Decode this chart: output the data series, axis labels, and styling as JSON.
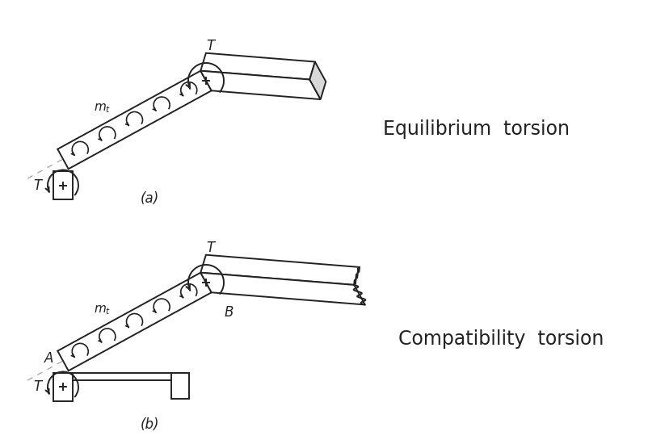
{
  "bg_color": "#ffffff",
  "line_color": "#222222",
  "gray_line_color": "#aaaaaa",
  "title_a": "Equilibrium  torsion",
  "title_b": "Compatibility  torsion",
  "label_a": "(a)",
  "label_b": "(b)",
  "title_fontsize": 17,
  "label_fontsize": 12
}
